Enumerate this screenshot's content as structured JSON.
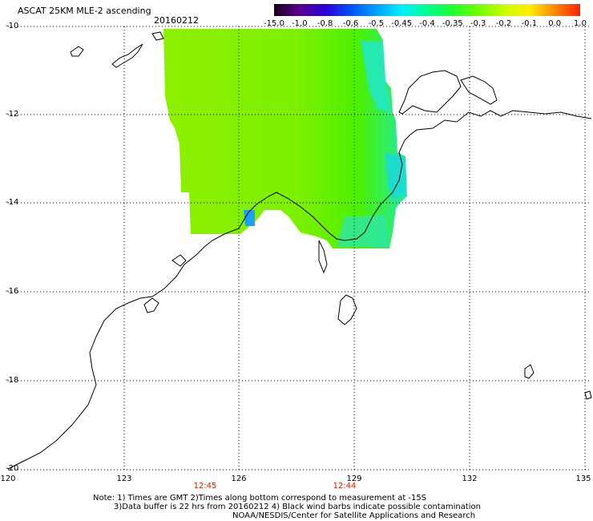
{
  "header": {
    "title": "ASCAT 25KM MLE-2 ascending",
    "date": "20160212"
  },
  "legend": {
    "labels": [
      "-15.0",
      "-1.0",
      "-0.8",
      "-0.6",
      "-0.5",
      "-0.45",
      "-0.4",
      "-0.35",
      "-0.3",
      "-0.2",
      "-0.1",
      "0.0",
      "1.0"
    ],
    "colors": [
      "#1a0018",
      "#5a0090",
      "#2a00d8",
      "#0050ff",
      "#00a0ff",
      "#00f0ff",
      "#00ff90",
      "#20ff30",
      "#70ff00",
      "#c8ff00",
      "#ffee00",
      "#ff8800",
      "#ff2200"
    ]
  },
  "axes": {
    "lat_labels": [
      "-10",
      "-12",
      "-14",
      "-16",
      "-18",
      "-20"
    ],
    "lon_labels": [
      "120",
      "123",
      "126",
      "129",
      "132",
      "135"
    ]
  },
  "time_labels": [
    "12:45",
    "12:44"
  ],
  "notes": {
    "line1": "Note: 1) Times are GMT 2)Times along bottom correspond to measurement at -15S",
    "line2": "3)Data buffer is 22 hrs from 20160212 4) Black wind barbs indicate possible contamination",
    "line3": "NOAA/NESDIS/Center for Satellite Applications and Research"
  }
}
